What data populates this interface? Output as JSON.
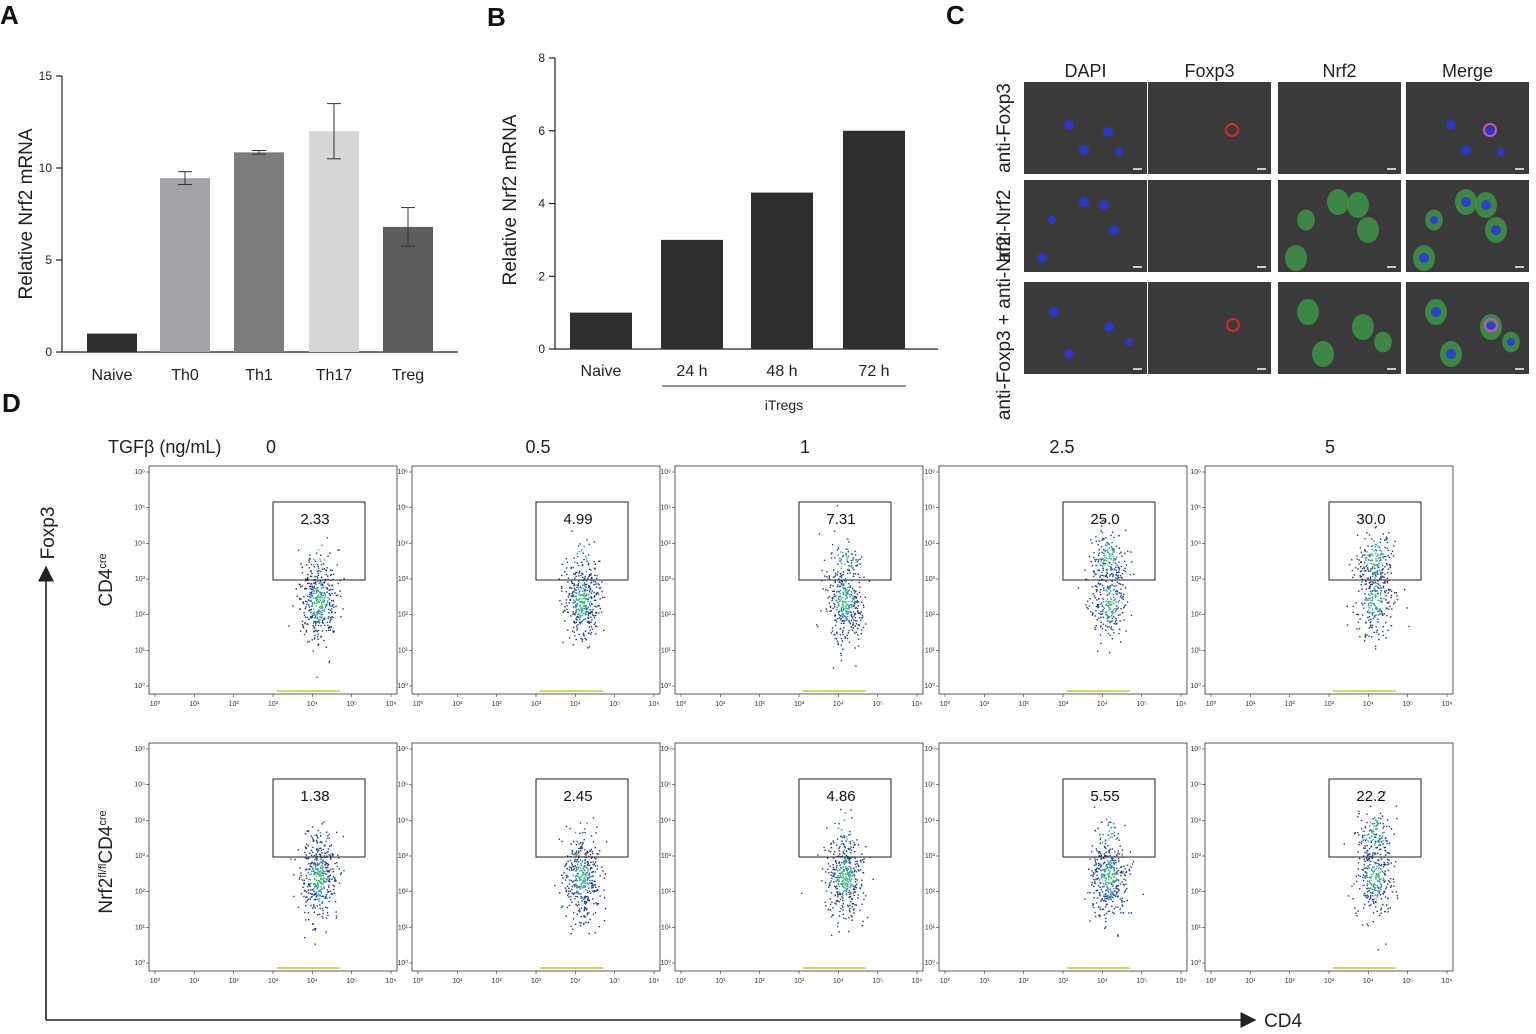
{
  "chart_data": [
    {
      "panel": "A",
      "type": "bar",
      "ylabel": "Relative Nrf2 mRNA",
      "ylim": [
        0,
        15
      ],
      "yticks": [
        "0",
        "5",
        "10",
        "15"
      ],
      "categories": [
        "Naive",
        "Th0",
        "Th1",
        "Th17",
        "Treg"
      ],
      "values": [
        1.0,
        9.45,
        10.85,
        12.0,
        6.8
      ],
      "errors": [
        0,
        0.35,
        0.1,
        1.5,
        1.05
      ],
      "colors": [
        "#2f2f31",
        "#a2a3a7",
        "#7c7c7f",
        "#d5d6d8",
        "#5d5d5f"
      ]
    },
    {
      "panel": "B",
      "type": "bar",
      "ylabel": "Relative Nrf2 mRNA",
      "ylim": [
        0,
        8
      ],
      "yticks": [
        "0",
        "2",
        "4",
        "6",
        "8"
      ],
      "categories": [
        "Naive",
        "24 h",
        "48 h",
        "72 h"
      ],
      "values": [
        1.0,
        3.0,
        4.3,
        6.0
      ],
      "group_label": "iTregs",
      "color": "#2e2e30"
    },
    {
      "panel": "C",
      "type": "image-grid",
      "columns": [
        "DAPI",
        "Foxp3",
        "Nrf2",
        "Merge"
      ],
      "rows": [
        "anti-Foxp3",
        "anti-Nrf2",
        "anti-Foxp3 + anti-Nrf2"
      ]
    },
    {
      "panel": "D",
      "type": "scatter",
      "ylabel": "Foxp3",
      "xlabel": "CD4",
      "header_label": "TGFβ (ng/mL)",
      "doses": [
        "0",
        "0.5",
        "1",
        "2.5",
        "5"
      ],
      "log_ticks": [
        "10⁰",
        "10¹",
        "10²",
        "10³",
        "10⁴",
        "10⁵",
        "10⁶"
      ],
      "rows": [
        {
          "label_main": "CD4",
          "label_sup": "cre",
          "label_prefix": "",
          "prefix_sup": "",
          "gate_values": [
            "2.33",
            "4.99",
            "7.31",
            "25.0",
            "30.0"
          ]
        },
        {
          "label_main": "CD4",
          "label_sup": "cre",
          "label_prefix": "Nrf2",
          "prefix_sup": "fl/fl",
          "gate_values": [
            "1.38",
            "2.45",
            "4.86",
            "5.55",
            "22.2"
          ]
        }
      ]
    }
  ],
  "panel_letters": [
    "A",
    "B",
    "C",
    "D"
  ]
}
